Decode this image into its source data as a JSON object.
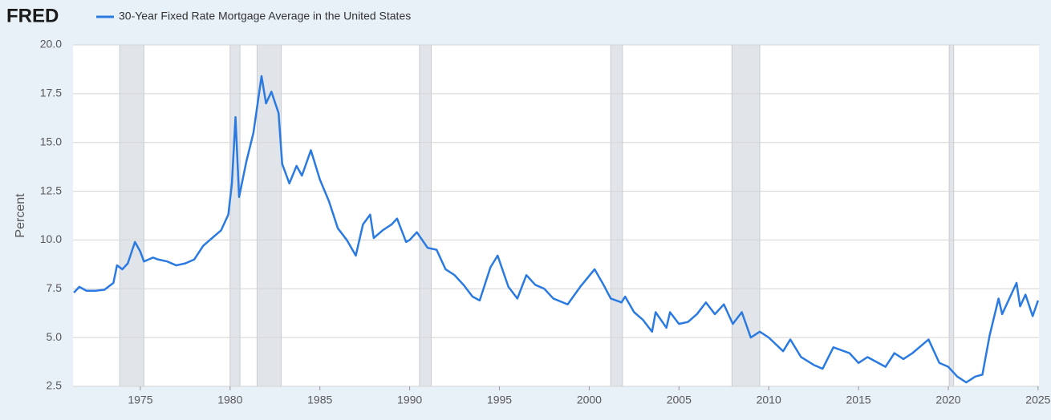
{
  "chart_data": {
    "type": "line",
    "logo": "FRED",
    "y_label": "Percent",
    "xlim": [
      1971.25,
      2025.05
    ],
    "xticks": [
      1975,
      1980,
      1985,
      1990,
      1995,
      2000,
      2005,
      2010,
      2015,
      2020,
      2025
    ],
    "ylim": [
      2.5,
      20
    ],
    "yticks": [
      2.5,
      {
        "value": 5,
        "label": "5.0"
      },
      7.5,
      {
        "value": 10,
        "label": "10.0"
      },
      12.5,
      {
        "value": 15,
        "label": "15.0"
      },
      17.5,
      {
        "value": 20,
        "label": "20.0"
      }
    ],
    "grid": true,
    "recession_color": "#e1e5ea",
    "recessions": [
      [
        1973.85,
        1975.2
      ],
      [
        1980.0,
        1980.55
      ],
      [
        1981.5,
        1982.85
      ],
      [
        1990.55,
        1991.2
      ],
      [
        2001.2,
        2001.85
      ],
      [
        2007.95,
        2009.5
      ],
      [
        2020.05,
        2020.3
      ]
    ],
    "x": [
      1971.3,
      1971.6,
      1972.0,
      1972.5,
      1973.0,
      1973.5,
      1973.7,
      1974.0,
      1974.3,
      1974.7,
      1975.0,
      1975.2,
      1975.7,
      1976.0,
      1976.5,
      1977.0,
      1977.5,
      1978.0,
      1978.5,
      1979.0,
      1979.5,
      1979.9,
      1980.1,
      1980.3,
      1980.5,
      1980.9,
      1981.3,
      1981.75,
      1982.0,
      1982.3,
      1982.7,
      1982.9,
      1983.3,
      1983.7,
      1984.0,
      1984.5,
      1985.0,
      1985.5,
      1986.0,
      1986.5,
      1987.0,
      1987.4,
      1987.8,
      1988.0,
      1988.5,
      1989.0,
      1989.3,
      1989.8,
      1990.0,
      1990.4,
      1991.0,
      1991.5,
      1992.0,
      1992.5,
      1993.0,
      1993.5,
      1993.9,
      1994.5,
      1994.9,
      1995.5,
      1996.0,
      1996.5,
      1997.0,
      1997.5,
      1998.0,
      1998.8,
      1999.5,
      2000.3,
      2000.8,
      2001.2,
      2001.8,
      2002.0,
      2002.5,
      2003.0,
      2003.5,
      2003.7,
      2004.3,
      2004.5,
      2005.0,
      2005.5,
      2006.0,
      2006.5,
      2007.0,
      2007.5,
      2008.0,
      2008.5,
      2009.0,
      2009.5,
      2010.0,
      2010.8,
      2011.2,
      2011.8,
      2012.5,
      2013.0,
      2013.6,
      2014.5,
      2015.0,
      2015.5,
      2016.5,
      2017.0,
      2017.5,
      2018.0,
      2018.9,
      2019.5,
      2020.0,
      2020.5,
      2021.0,
      2021.5,
      2021.9,
      2022.3,
      2022.8,
      2023.0,
      2023.8,
      2024.0,
      2024.3,
      2024.7,
      2025.0
    ],
    "series": [
      {
        "name": "30-Year Fixed Rate Mortgage Average in the United States",
        "color": "#2a7ae2",
        "values": [
          7.3,
          7.6,
          7.4,
          7.4,
          7.45,
          7.8,
          8.7,
          8.5,
          8.8,
          9.9,
          9.4,
          8.9,
          9.1,
          9.0,
          8.9,
          8.7,
          8.8,
          9.0,
          9.7,
          10.1,
          10.5,
          11.3,
          12.9,
          16.3,
          12.2,
          14.0,
          15.5,
          18.4,
          17.0,
          17.6,
          16.5,
          13.9,
          12.9,
          13.8,
          13.3,
          14.6,
          13.1,
          12.0,
          10.6,
          10.0,
          9.2,
          10.8,
          11.3,
          10.1,
          10.5,
          10.8,
          11.1,
          9.9,
          10.0,
          10.4,
          9.6,
          9.5,
          8.5,
          8.2,
          7.7,
          7.1,
          6.9,
          8.6,
          9.2,
          7.6,
          7.0,
          8.2,
          7.7,
          7.5,
          7.0,
          6.7,
          7.6,
          8.5,
          7.7,
          7.0,
          6.8,
          7.1,
          6.3,
          5.9,
          5.3,
          6.3,
          5.5,
          6.3,
          5.7,
          5.8,
          6.2,
          6.8,
          6.2,
          6.7,
          5.7,
          6.3,
          5.0,
          5.3,
          5.0,
          4.3,
          4.9,
          4.0,
          3.6,
          3.4,
          4.5,
          4.2,
          3.7,
          4.0,
          3.5,
          4.2,
          3.9,
          4.2,
          4.9,
          3.7,
          3.5,
          3.0,
          2.7,
          3.0,
          3.1,
          5.1,
          7.0,
          6.2,
          7.8,
          6.6,
          7.2,
          6.1,
          6.9
        ]
      }
    ]
  }
}
